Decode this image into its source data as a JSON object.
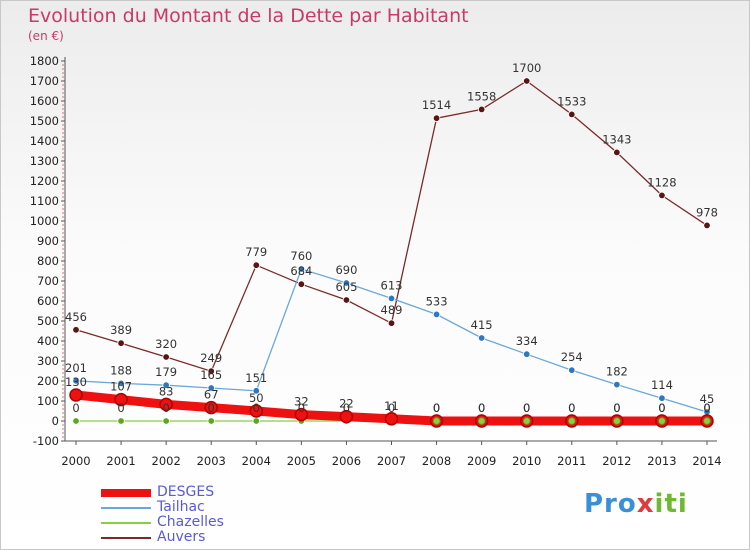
{
  "title": "Evolution du Montant de la Dette par Habitant",
  "subtitle": "(en €)",
  "brand": {
    "part1": "Pro",
    "part2": "x",
    "part3": "iti"
  },
  "chart_data": {
    "type": "line",
    "title": "Evolution du Montant de la Dette par Habitant",
    "subtitle": "(en €)",
    "x": [
      "2000",
      "2001",
      "2002",
      "2003",
      "2004",
      "2005",
      "2006",
      "2007",
      "2008",
      "2009",
      "2010",
      "2011",
      "2012",
      "2013",
      "2014"
    ],
    "ylim": [
      -100,
      1800
    ],
    "yticks": [
      -100,
      0,
      100,
      200,
      300,
      400,
      500,
      600,
      700,
      800,
      900,
      1000,
      1100,
      1200,
      1300,
      1400,
      1500,
      1600,
      1700,
      1800
    ],
    "grid": false,
    "legend_position": "bottom-left",
    "series": [
      {
        "name": "DESGES",
        "color": "#ee1111",
        "marker": "#b00000",
        "values": [
          130,
          107,
          83,
          67,
          50,
          32,
          22,
          11,
          0,
          0,
          0,
          0,
          0,
          0,
          0
        ],
        "labels": [
          "130",
          "107",
          "83",
          "67",
          "50",
          "32",
          "22",
          "11",
          "0",
          "0",
          "0",
          "0",
          "0",
          "0",
          "0"
        ]
      },
      {
        "name": "Tailhac",
        "color": "#6aa8dc",
        "marker": "#2e78c0",
        "values": [
          201,
          188,
          179,
          165,
          151,
          760,
          690,
          613,
          533,
          415,
          334,
          254,
          182,
          114,
          45
        ],
        "labels": [
          "201",
          "188",
          "179",
          "165",
          "151",
          "760",
          "690",
          "613",
          "533",
          "415",
          "334",
          "254",
          "182",
          "114",
          "45"
        ]
      },
      {
        "name": "Chazelles",
        "color": "#88d040",
        "marker": "#5aa820",
        "values": [
          0,
          0,
          0,
          0,
          0,
          0,
          0,
          0,
          0,
          0,
          0,
          0,
          0,
          0,
          0
        ],
        "labels": [
          "0",
          "0",
          "0",
          "0",
          "0",
          "0",
          "0",
          "0",
          "0",
          "0",
          "0",
          "0",
          "0",
          "0",
          "0"
        ]
      },
      {
        "name": "Auvers",
        "color": "#7a2a2a",
        "marker": "#5a1414",
        "values": [
          456,
          389,
          320,
          249,
          779,
          684,
          605,
          489,
          1514,
          1558,
          1700,
          1533,
          1343,
          1128,
          978
        ],
        "labels": [
          "456",
          "389",
          "320",
          "249",
          "779",
          "684",
          "605",
          "489",
          "1514",
          "1558",
          "1700",
          "1533",
          "1343",
          "1128",
          "978"
        ]
      }
    ]
  }
}
